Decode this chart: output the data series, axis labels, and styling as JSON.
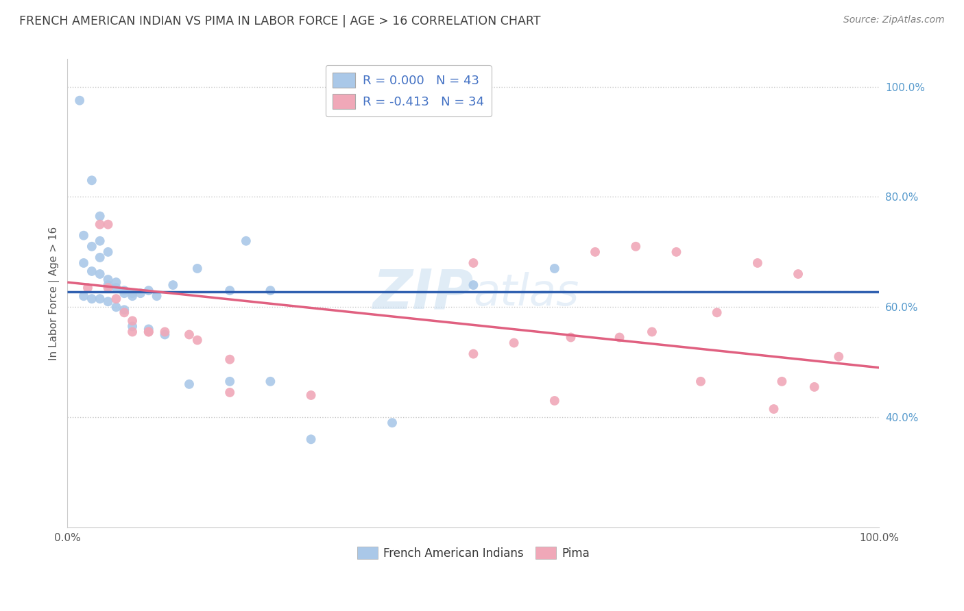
{
  "title": "FRENCH AMERICAN INDIAN VS PIMA IN LABOR FORCE | AGE > 16 CORRELATION CHART",
  "source": "Source: ZipAtlas.com",
  "xlabel": "",
  "ylabel": "In Labor Force | Age > 16",
  "xlim": [
    0.0,
    1.0
  ],
  "ylim": [
    0.2,
    1.05
  ],
  "x_ticks": [
    0.0,
    0.2,
    0.4,
    0.6,
    0.8,
    1.0
  ],
  "x_tick_labels": [
    "0.0%",
    "",
    "",
    "",
    "",
    "100.0%"
  ],
  "y_ticks": [
    0.4,
    0.6,
    0.8,
    1.0
  ],
  "y_tick_labels": [
    "40.0%",
    "60.0%",
    "80.0%",
    "100.0%"
  ],
  "legend_entries": [
    {
      "label": "French American Indians",
      "color": "#a8c4e0",
      "R": "0.000",
      "N": "43"
    },
    {
      "label": "Pima",
      "color": "#f0a0b0",
      "R": "-0.413",
      "N": "34"
    }
  ],
  "blue_scatter_x": [
    0.015,
    0.03,
    0.04,
    0.02,
    0.04,
    0.03,
    0.05,
    0.04,
    0.02,
    0.03,
    0.04,
    0.05,
    0.06,
    0.05,
    0.06,
    0.07,
    0.08,
    0.07,
    0.08,
    0.09,
    0.1,
    0.11,
    0.13,
    0.16,
    0.2,
    0.25,
    0.02,
    0.03,
    0.04,
    0.05,
    0.06,
    0.07,
    0.08,
    0.1,
    0.12,
    0.15,
    0.2,
    0.25,
    0.3,
    0.4,
    0.5,
    0.6,
    0.22
  ],
  "blue_scatter_y": [
    0.975,
    0.83,
    0.765,
    0.73,
    0.72,
    0.71,
    0.7,
    0.69,
    0.68,
    0.665,
    0.66,
    0.65,
    0.645,
    0.64,
    0.635,
    0.63,
    0.625,
    0.625,
    0.62,
    0.625,
    0.63,
    0.62,
    0.64,
    0.67,
    0.63,
    0.63,
    0.62,
    0.615,
    0.615,
    0.61,
    0.6,
    0.595,
    0.565,
    0.56,
    0.55,
    0.46,
    0.465,
    0.465,
    0.36,
    0.39,
    0.64,
    0.67,
    0.72
  ],
  "pink_scatter_x": [
    0.025,
    0.04,
    0.05,
    0.05,
    0.06,
    0.07,
    0.08,
    0.1,
    0.12,
    0.15,
    0.16,
    0.2,
    0.3,
    0.5,
    0.6,
    0.65,
    0.7,
    0.75,
    0.8,
    0.85,
    0.9,
    0.95,
    0.5,
    0.55,
    0.62,
    0.68,
    0.72,
    0.78,
    0.88,
    0.92,
    0.2,
    0.08,
    0.1,
    0.87
  ],
  "pink_scatter_y": [
    0.635,
    0.75,
    0.75,
    0.635,
    0.615,
    0.59,
    0.575,
    0.555,
    0.555,
    0.55,
    0.54,
    0.505,
    0.44,
    0.515,
    0.43,
    0.7,
    0.71,
    0.7,
    0.59,
    0.68,
    0.66,
    0.51,
    0.68,
    0.535,
    0.545,
    0.545,
    0.555,
    0.465,
    0.465,
    0.455,
    0.445,
    0.555,
    0.555,
    0.415
  ],
  "blue_line_x": [
    0.0,
    1.0
  ],
  "blue_line_y": [
    0.628,
    0.628
  ],
  "pink_line_x": [
    0.0,
    1.0
  ],
  "pink_line_y": [
    0.645,
    0.49
  ],
  "watermark_line1": "ZIP",
  "watermark_line2": "atlas",
  "bg_color": "#ffffff",
  "grid_color": "#c8c8c8",
  "dot_size": 100,
  "blue_dot_color": "#aac8e8",
  "pink_dot_color": "#f0a8b8",
  "blue_line_color": "#3060b0",
  "pink_line_color": "#e06080",
  "title_color": "#404040",
  "source_color": "#808080",
  "legend_text_color": "#4472c4",
  "yaxis_tick_color": "#5599cc",
  "xaxis_tick_color": "#555555"
}
